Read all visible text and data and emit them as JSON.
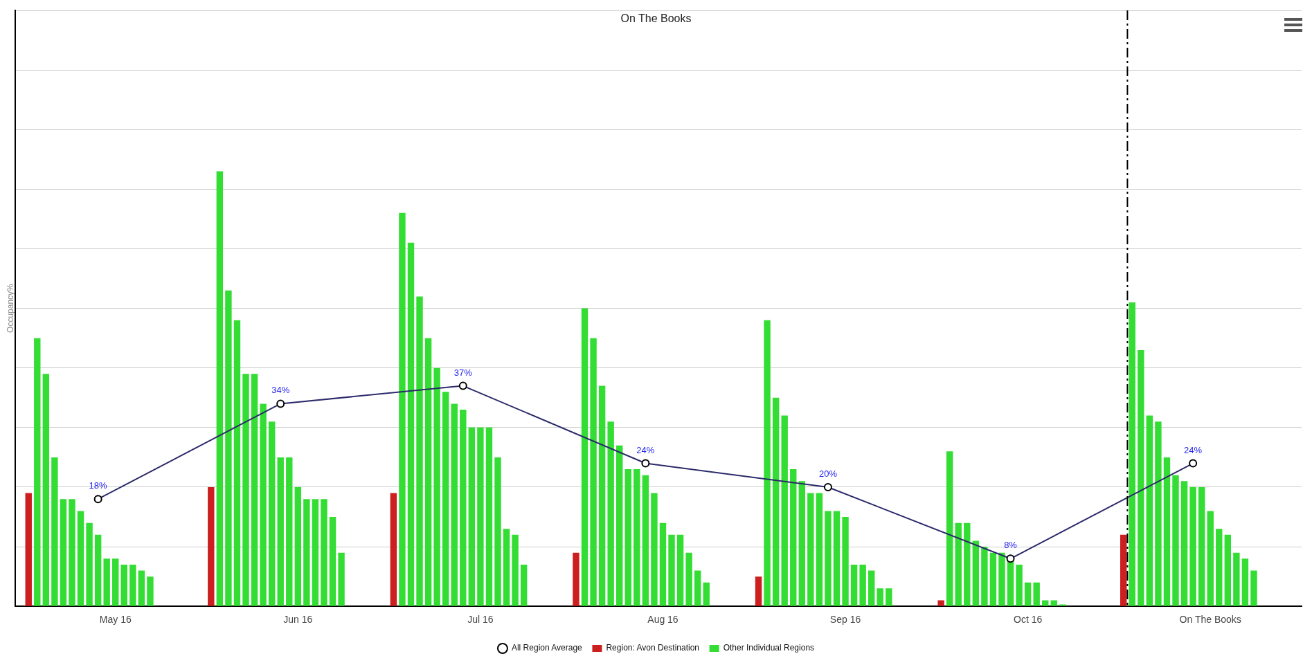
{
  "chart_data": {
    "type": "bar",
    "title": "On The Books",
    "ylabel": "Occupancy%",
    "categories": [
      null,
      null,
      null,
      null,
      null,
      null,
      null,
      null,
      null,
      null,
      null,
      "May 16",
      null,
      null,
      null,
      null,
      null,
      null,
      null,
      null,
      null,
      null,
      null,
      null,
      null,
      null,
      null,
      null,
      null,
      null,
      null,
      null,
      "Jun 16",
      null,
      null,
      null,
      null,
      null,
      null,
      null,
      null,
      null,
      null,
      null,
      null,
      null,
      null,
      null,
      null,
      null,
      null,
      null,
      null,
      "Jul 16",
      null,
      null,
      null,
      null,
      null,
      null,
      null,
      null,
      null,
      null,
      null,
      null,
      null,
      null,
      null,
      null,
      null,
      null,
      null,
      null,
      "Aug 16",
      null,
      null,
      null,
      null,
      null,
      null,
      null,
      null,
      null,
      null,
      null,
      null,
      null,
      null,
      null,
      null,
      null,
      null,
      null,
      null,
      "Sep 16",
      null,
      null,
      null,
      null,
      null,
      null,
      null,
      null,
      null,
      null,
      null,
      null,
      null,
      null,
      null,
      null,
      null,
      null,
      null,
      null,
      "Oct 16",
      null,
      null,
      null,
      null,
      null,
      null,
      null,
      null,
      null,
      null,
      null,
      null,
      null,
      null,
      null,
      null,
      null,
      null,
      null,
      null,
      "On The Books",
      null,
      null,
      null,
      null,
      null,
      null,
      null,
      null,
      null,
      null
    ],
    "series": [
      {
        "name": "Region: Avon Destination",
        "color": "#cc1f1f",
        "values": [
          null,
          19,
          null,
          null,
          null,
          null,
          null,
          null,
          null,
          null,
          null,
          null,
          null,
          null,
          null,
          null,
          null,
          null,
          null,
          null,
          null,
          null,
          20,
          null,
          null,
          null,
          null,
          null,
          null,
          null,
          null,
          null,
          null,
          null,
          null,
          null,
          null,
          null,
          null,
          null,
          null,
          null,
          null,
          19,
          null,
          null,
          null,
          null,
          null,
          null,
          null,
          null,
          null,
          null,
          null,
          null,
          null,
          null,
          null,
          null,
          null,
          null,
          null,
          null,
          9,
          null,
          null,
          null,
          null,
          null,
          null,
          null,
          null,
          null,
          null,
          null,
          null,
          null,
          null,
          null,
          null,
          null,
          null,
          null,
          null,
          5,
          null,
          null,
          null,
          null,
          null,
          null,
          null,
          null,
          null,
          null,
          null,
          null,
          null,
          null,
          null,
          null,
          null,
          null,
          null,
          null,
          1,
          null,
          null,
          null,
          null,
          null,
          null,
          null,
          null,
          null,
          null,
          null,
          null,
          null,
          null,
          null,
          null,
          null,
          null,
          null,
          null,
          12,
          null,
          null,
          null,
          null,
          null,
          null,
          null,
          null,
          null,
          null,
          null,
          null,
          null,
          null,
          null,
          null,
          null,
          null,
          null,
          null
        ]
      },
      {
        "name": "Other Individual Regions",
        "color": "#33dd33",
        "values": [
          null,
          null,
          45,
          39,
          25,
          18,
          18,
          16,
          14,
          12,
          8,
          8,
          7,
          7,
          6,
          5,
          null,
          null,
          null,
          null,
          null,
          null,
          null,
          73,
          53,
          48,
          39,
          39,
          34,
          31,
          25,
          25,
          20,
          18,
          18,
          18,
          15,
          9,
          null,
          null,
          null,
          null,
          null,
          null,
          66,
          61,
          52,
          45,
          40,
          36,
          34,
          33,
          30,
          30,
          30,
          25,
          13,
          12,
          7,
          null,
          null,
          null,
          null,
          null,
          null,
          50,
          45,
          37,
          31,
          27,
          23,
          23,
          22,
          19,
          14,
          12,
          12,
          9,
          6,
          4,
          null,
          null,
          null,
          null,
          null,
          null,
          48,
          35,
          32,
          23,
          21,
          19,
          19,
          16,
          16,
          15,
          7,
          7,
          6,
          3,
          3,
          null,
          null,
          null,
          null,
          null,
          null,
          26,
          14,
          14,
          11,
          10,
          9,
          9,
          8,
          7,
          4,
          4,
          1,
          1,
          0.3,
          null,
          null,
          null,
          null,
          null,
          null,
          null,
          51,
          43,
          32,
          31,
          25,
          22,
          21,
          20,
          20,
          16,
          13,
          12,
          9,
          8,
          6,
          null,
          null,
          null,
          null,
          null
        ]
      },
      {
        "name": "All Region Average",
        "type": "line",
        "color": "#2b2a6b",
        "values": [
          null,
          null,
          null,
          null,
          null,
          null,
          null,
          null,
          null,
          18,
          null,
          null,
          null,
          null,
          null,
          null,
          null,
          null,
          null,
          null,
          null,
          null,
          null,
          null,
          null,
          null,
          null,
          null,
          null,
          null,
          34,
          null,
          null,
          null,
          null,
          null,
          null,
          null,
          null,
          null,
          null,
          null,
          null,
          null,
          null,
          null,
          null,
          null,
          null,
          null,
          null,
          37,
          null,
          null,
          null,
          null,
          null,
          null,
          null,
          null,
          null,
          null,
          null,
          null,
          null,
          null,
          null,
          null,
          null,
          null,
          null,
          null,
          24,
          null,
          null,
          null,
          null,
          null,
          null,
          null,
          null,
          null,
          null,
          null,
          null,
          null,
          null,
          null,
          null,
          null,
          null,
          null,
          null,
          20,
          null,
          null,
          null,
          null,
          null,
          null,
          null,
          null,
          null,
          null,
          null,
          null,
          null,
          null,
          null,
          null,
          null,
          null,
          null,
          null,
          8,
          null,
          null,
          null,
          null,
          null,
          null,
          null,
          null,
          null,
          null,
          null,
          null,
          null,
          null,
          null,
          null,
          null,
          null,
          null,
          null,
          24,
          null,
          null,
          null,
          null,
          null,
          null,
          null,
          null,
          null,
          null,
          null,
          null
        ],
        "value_labels": [
          null,
          null,
          null,
          null,
          null,
          null,
          null,
          null,
          null,
          "18%",
          null,
          null,
          null,
          null,
          null,
          null,
          null,
          null,
          null,
          null,
          null,
          null,
          null,
          null,
          null,
          null,
          null,
          null,
          null,
          null,
          "34%",
          null,
          null,
          null,
          null,
          null,
          null,
          null,
          null,
          null,
          null,
          null,
          null,
          null,
          null,
          null,
          null,
          null,
          null,
          null,
          null,
          "37%",
          null,
          null,
          null,
          null,
          null,
          null,
          null,
          null,
          null,
          null,
          null,
          null,
          null,
          null,
          null,
          null,
          null,
          null,
          null,
          null,
          "24%",
          null,
          null,
          null,
          null,
          null,
          null,
          null,
          null,
          null,
          null,
          null,
          null,
          null,
          null,
          null,
          null,
          null,
          null,
          null,
          null,
          "20%",
          null,
          null,
          null,
          null,
          null,
          null,
          null,
          null,
          null,
          null,
          null,
          null,
          null,
          null,
          null,
          null,
          null,
          null,
          null,
          null,
          "8%",
          null,
          null,
          null,
          null,
          null,
          null,
          null,
          null,
          null,
          null,
          null,
          null,
          null,
          null,
          null,
          null,
          null,
          null,
          null,
          null,
          "24%",
          null,
          null,
          null,
          null,
          null,
          null,
          null,
          null,
          null,
          null,
          null,
          null
        ]
      }
    ],
    "ylim": [
      0,
      100
    ],
    "yticks": [
      {
        "value": 0,
        "label": null
      },
      {
        "value": 10,
        "label": null
      },
      {
        "value": 20,
        "label": null
      },
      {
        "value": 30,
        "label": null
      },
      {
        "value": 40,
        "label": null
      },
      {
        "value": 50,
        "label": null
      },
      {
        "value": 60,
        "label": null
      },
      {
        "value": 70,
        "label": null
      },
      {
        "value": 80,
        "label": null
      },
      {
        "value": 90,
        "label": null
      },
      {
        "value": 100,
        "label": null
      }
    ],
    "tick_labels": "x",
    "grid": "y",
    "legend": "bottom",
    "marker": "circle"
  }
}
